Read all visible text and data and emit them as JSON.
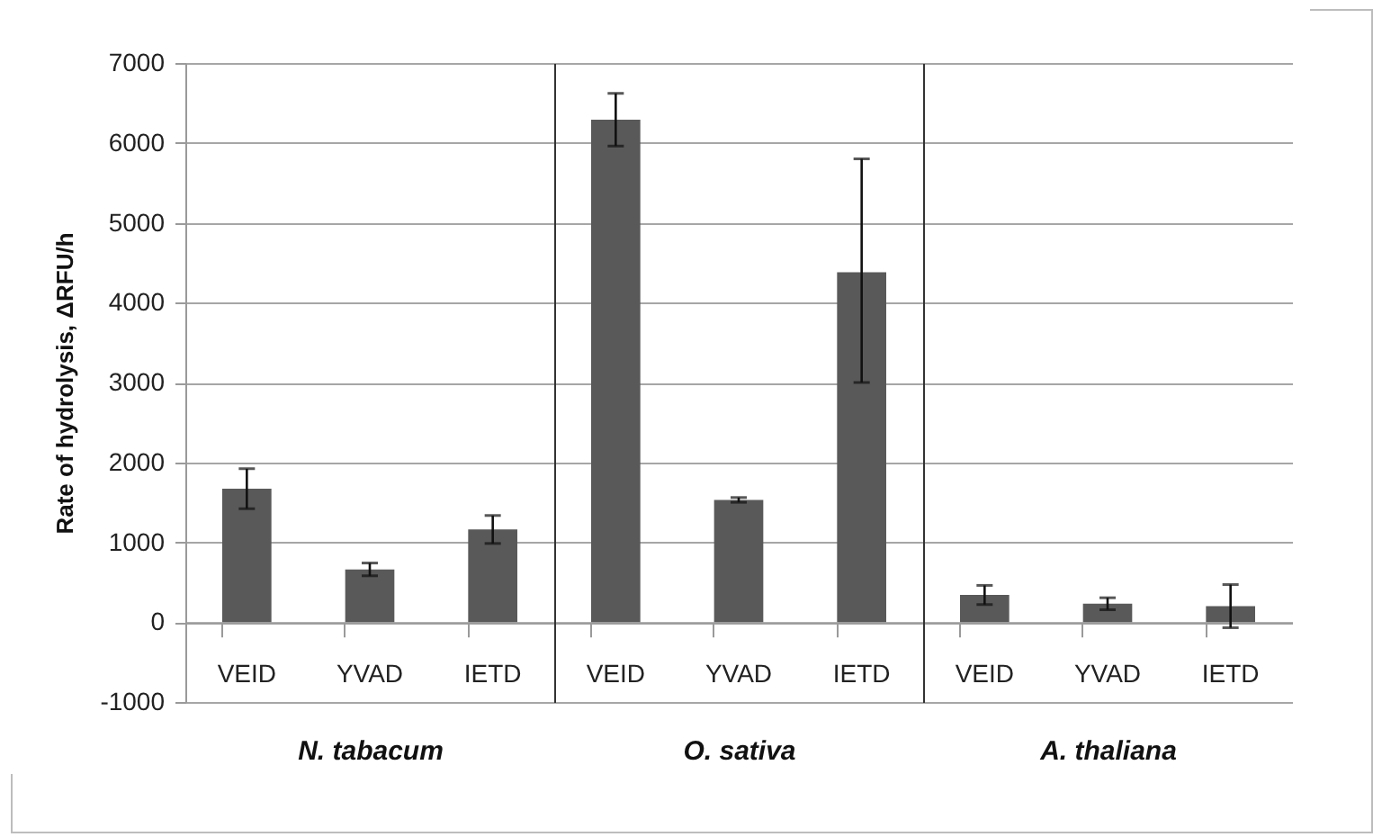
{
  "chart_data": [
    {
      "type": "bar",
      "xlabel": "N. tabacum",
      "ylabel": "Rate of hydrolysis,  ΔRFU/h",
      "categories": [
        "VEID",
        "YVAD",
        "IETD"
      ],
      "values": [
        1670,
        660,
        1160
      ],
      "errors": [
        250,
        80,
        175
      ],
      "color": "#595959",
      "ylim": [
        -1000,
        7000
      ],
      "yticks": [
        -1000,
        0,
        1000,
        2000,
        3000,
        4000,
        5000,
        6000,
        7000
      ],
      "grid": "y"
    },
    {
      "type": "bar",
      "xlabel": "O. sativa",
      "categories": [
        "VEID",
        "YVAD",
        "IETD"
      ],
      "values": [
        6290,
        1530,
        4380
      ],
      "errors": [
        330,
        30,
        [
          3000,
          5800
        ]
      ],
      "color": "#595959",
      "ylim": [
        -1000,
        7000
      ],
      "yticks": [
        -1000,
        0,
        1000,
        2000,
        3000,
        4000,
        5000,
        6000,
        7000
      ],
      "grid": "y",
      "tick_labels": "x"
    },
    {
      "type": "bar",
      "xlabel": "A. thaliana",
      "categories": [
        "VEID",
        "YVAD",
        "IETD"
      ],
      "values": [
        340,
        230,
        200
      ],
      "errors": [
        120,
        75,
        270
      ],
      "color": "#595959",
      "ylim": [
        -1000,
        7000
      ],
      "yticks": [
        -1000,
        0,
        1000,
        2000,
        3000,
        4000,
        5000,
        6000,
        7000
      ],
      "grid": "y",
      "tick_labels": "x"
    }
  ]
}
